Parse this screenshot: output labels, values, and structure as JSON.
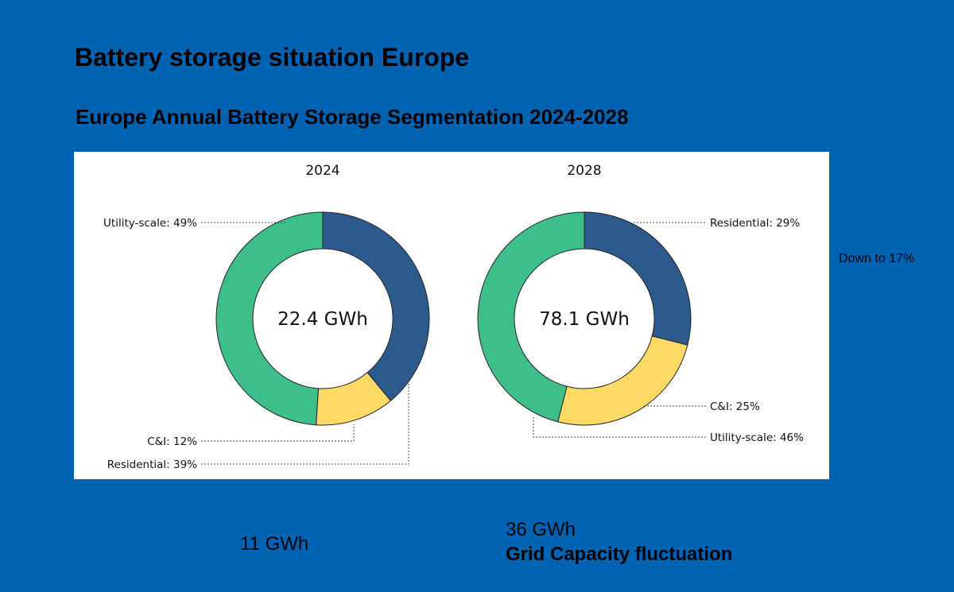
{
  "title": "Battery storage situation Europe",
  "subtitle": "Europe Annual Battery Storage Segmentation 2024-2028",
  "side_note": "Down to 17%",
  "footer": {
    "left_value": "11 GWh",
    "right_value": "36 GWh",
    "right_caption": "Grid Capacity fluctuation"
  },
  "colors": {
    "residential": "#2c5a8c",
    "ci": "#fdd966",
    "utility": "#3ebf8a",
    "outline": "#222222",
    "background": "#0063b2"
  },
  "chart_data": [
    {
      "type": "pie",
      "title": "2024",
      "center_label": "22.4 GWh",
      "categories": [
        "Residential",
        "C&I",
        "Utility-scale"
      ],
      "values": [
        39,
        12,
        49
      ],
      "labels": [
        "Residential: 39%",
        "C&I: 12%",
        "Utility-scale: 49%"
      ],
      "legend": "none"
    },
    {
      "type": "pie",
      "title": "2028",
      "center_label": "78.1 GWh",
      "categories": [
        "Residential",
        "C&I",
        "Utility-scale"
      ],
      "values": [
        29,
        25,
        46
      ],
      "labels": [
        "Residential: 29%",
        "C&I: 25%",
        "Utility-scale: 46%"
      ],
      "legend": "none"
    }
  ]
}
